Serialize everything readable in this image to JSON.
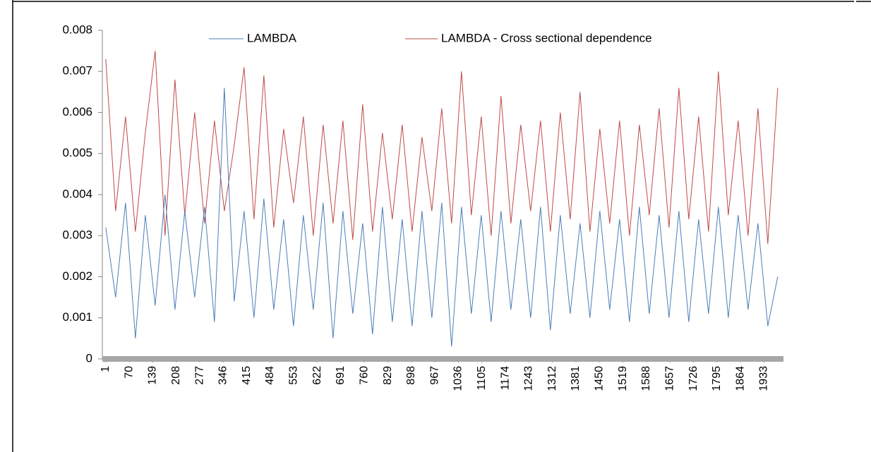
{
  "chart_data": {
    "type": "line",
    "x": [
      1,
      30,
      59,
      88,
      117,
      146,
      175,
      204,
      233,
      262,
      291,
      320,
      349,
      378,
      407,
      436,
      465,
      494,
      523,
      552,
      581,
      610,
      639,
      668,
      697,
      726,
      755,
      784,
      813,
      842,
      871,
      900,
      929,
      958,
      987,
      1016,
      1045,
      1074,
      1103,
      1132,
      1161,
      1190,
      1219,
      1248,
      1277,
      1306,
      1335,
      1364,
      1393,
      1422,
      1451,
      1480,
      1509,
      1538,
      1567,
      1596,
      1625,
      1654,
      1683,
      1712,
      1741,
      1770,
      1799,
      1828,
      1857,
      1886,
      1915,
      1944,
      1973
    ],
    "series": [
      {
        "name": "LAMBDA - Cross sectional dependence",
        "color": "#be4b48",
        "values": [
          0.0073,
          0.0036,
          0.0059,
          0.0031,
          0.0055,
          0.0075,
          0.003,
          0.0068,
          0.0035,
          0.006,
          0.0033,
          0.0058,
          0.0036,
          0.0052,
          0.0071,
          0.0034,
          0.0069,
          0.0032,
          0.0056,
          0.0038,
          0.0059,
          0.003,
          0.0057,
          0.0033,
          0.0058,
          0.0029,
          0.0062,
          0.0031,
          0.0055,
          0.0034,
          0.0057,
          0.0031,
          0.0054,
          0.0036,
          0.0061,
          0.0033,
          0.007,
          0.0035,
          0.0059,
          0.003,
          0.0064,
          0.0033,
          0.0057,
          0.0036,
          0.0058,
          0.0031,
          0.006,
          0.0034,
          0.0065,
          0.0031,
          0.0056,
          0.0033,
          0.0058,
          0.003,
          0.0057,
          0.0035,
          0.0061,
          0.0032,
          0.0066,
          0.0034,
          0.0059,
          0.0031,
          0.007,
          0.0035,
          0.0058,
          0.003,
          0.0061,
          0.0028,
          0.0066
        ]
      },
      {
        "name": "LAMBDA",
        "color": "#4a7ebb",
        "values": [
          0.0032,
          0.0015,
          0.0038,
          0.0005,
          0.0035,
          0.0013,
          0.004,
          0.0012,
          0.0036,
          0.0015,
          0.0037,
          0.0009,
          0.0066,
          0.0014,
          0.0036,
          0.001,
          0.0039,
          0.0012,
          0.0034,
          0.0008,
          0.0035,
          0.0012,
          0.0038,
          0.0005,
          0.0036,
          0.0011,
          0.0033,
          0.0006,
          0.0037,
          0.0009,
          0.0034,
          0.0008,
          0.0036,
          0.001,
          0.0038,
          0.0003,
          0.0037,
          0.0011,
          0.0035,
          0.0009,
          0.0036,
          0.0012,
          0.0034,
          0.001,
          0.0037,
          0.0007,
          0.0035,
          0.0011,
          0.0033,
          0.001,
          0.0036,
          0.0012,
          0.0034,
          0.0009,
          0.0037,
          0.0011,
          0.0035,
          0.001,
          0.0036,
          0.0009,
          0.0034,
          0.0011,
          0.0037,
          0.001,
          0.0035,
          0.0012,
          0.0033,
          0.0008,
          0.002
        ]
      }
    ],
    "xlim": [
      -9,
      1990
    ],
    "xticks": [
      1,
      70,
      139,
      208,
      277,
      346,
      415,
      484,
      553,
      622,
      691,
      760,
      829,
      898,
      967,
      1036,
      1105,
      1174,
      1243,
      1312,
      1381,
      1450,
      1519,
      1588,
      1657,
      1726,
      1795,
      1864,
      1933
    ],
    "ylim": [
      0,
      0.008
    ],
    "yticks": [
      0,
      0.001,
      0.002,
      0.003,
      0.004,
      0.005,
      0.006,
      0.007,
      0.008
    ]
  }
}
